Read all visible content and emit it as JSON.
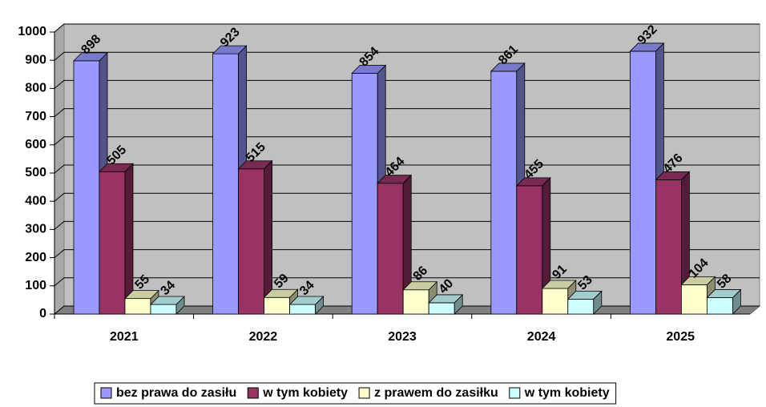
{
  "chart_data": {
    "type": "bar3d",
    "categories": [
      "2021",
      "2022",
      "2023",
      "2024",
      "2025"
    ],
    "series": [
      {
        "name": "bez prawa do zasiłu",
        "color": "#9999ff",
        "values": [
          898,
          923,
          854,
          861,
          932
        ]
      },
      {
        "name": "w tym kobiety",
        "color": "#993366",
        "values": [
          505,
          515,
          464,
          455,
          476
        ]
      },
      {
        "name": "z prawem do zasiłku",
        "color": "#ffffcc",
        "values": [
          55,
          59,
          86,
          91,
          104
        ]
      },
      {
        "name": "w tym kobiety",
        "color": "#ccffff",
        "values": [
          34,
          34,
          40,
          53,
          58
        ]
      }
    ],
    "ylim": [
      0,
      1000
    ],
    "yticks": [
      0,
      100,
      200,
      300,
      400,
      500,
      600,
      700,
      800,
      900,
      1000
    ],
    "grid": true,
    "legend": "bottom"
  }
}
